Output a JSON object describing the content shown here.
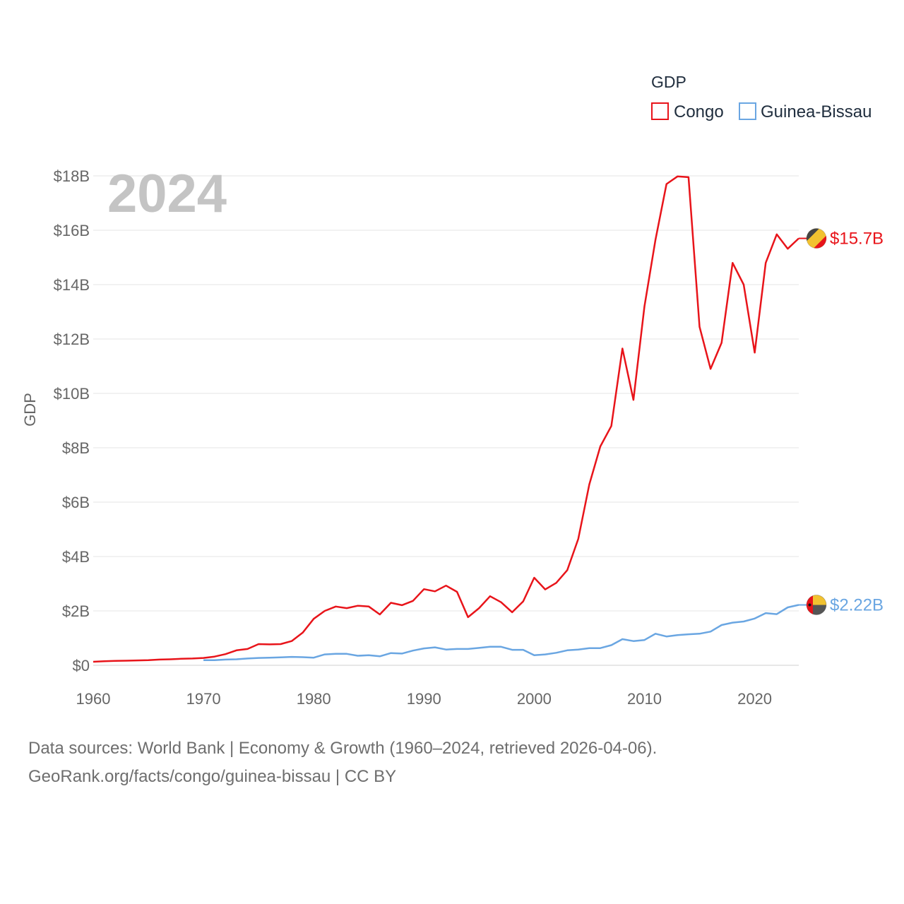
{
  "chart_data": {
    "type": "line",
    "legend_title": "GDP",
    "watermark_year": "2024",
    "ylabel": "GDP",
    "xlim": [
      1960,
      2024
    ],
    "ylim": [
      0,
      18
    ],
    "y_ticks": [
      0,
      2,
      4,
      6,
      8,
      10,
      12,
      14,
      16,
      18
    ],
    "y_tick_labels": [
      "$0",
      "$2B",
      "$4B",
      "$6B",
      "$8B",
      "$10B",
      "$12B",
      "$14B",
      "$16B",
      "$18B"
    ],
    "x_ticks": [
      1960,
      1970,
      1980,
      1990,
      2000,
      2010,
      2020
    ],
    "x_tick_labels": [
      "1960",
      "1970",
      "1980",
      "1990",
      "2000",
      "2010",
      "2020"
    ],
    "grid": true,
    "legend_position": "top-right",
    "series": [
      {
        "name": "Congo",
        "color": "#e8141a",
        "end_label": "$15.7B",
        "flag_colors": [
          "#444444",
          "#f2c230",
          "#e8141a"
        ],
        "x": [
          1960,
          1961,
          1962,
          1963,
          1964,
          1965,
          1966,
          1967,
          1968,
          1969,
          1970,
          1971,
          1972,
          1973,
          1974,
          1975,
          1976,
          1977,
          1978,
          1979,
          1980,
          1981,
          1982,
          1983,
          1984,
          1985,
          1986,
          1987,
          1988,
          1989,
          1990,
          1991,
          1992,
          1993,
          1994,
          1995,
          1996,
          1997,
          1998,
          1999,
          2000,
          2001,
          2002,
          2003,
          2004,
          2005,
          2006,
          2007,
          2008,
          2009,
          2010,
          2011,
          2012,
          2013,
          2014,
          2015,
          2016,
          2017,
          2018,
          2019,
          2020,
          2021,
          2022,
          2023,
          2024
        ],
        "values": [
          0.13,
          0.15,
          0.16,
          0.17,
          0.18,
          0.19,
          0.21,
          0.22,
          0.24,
          0.25,
          0.27,
          0.32,
          0.41,
          0.55,
          0.6,
          0.78,
          0.77,
          0.78,
          0.89,
          1.2,
          1.71,
          2.0,
          2.16,
          2.1,
          2.19,
          2.16,
          1.87,
          2.3,
          2.21,
          2.37,
          2.8,
          2.72,
          2.93,
          2.7,
          1.77,
          2.1,
          2.54,
          2.32,
          1.95,
          2.35,
          3.22,
          2.79,
          3.03,
          3.5,
          4.65,
          6.65,
          8.05,
          8.8,
          11.65,
          9.76,
          13.2,
          15.65,
          17.7,
          17.98,
          17.95,
          12.45,
          10.9,
          11.86,
          14.8,
          14.0,
          11.5,
          14.8,
          15.85,
          15.32,
          15.7
        ]
      },
      {
        "name": "Guinea-Bissau",
        "color": "#6aa6e2",
        "end_label": "$2.22B",
        "flag_colors": [
          "#e8141a",
          "#f2c230",
          "#555555"
        ],
        "x": [
          1970,
          1971,
          1972,
          1973,
          1974,
          1975,
          1976,
          1977,
          1978,
          1979,
          1980,
          1981,
          1982,
          1983,
          1984,
          1985,
          1986,
          1987,
          1988,
          1989,
          1990,
          1991,
          1992,
          1993,
          1994,
          1995,
          1996,
          1997,
          1998,
          1999,
          2000,
          2001,
          2002,
          2003,
          2004,
          2005,
          2006,
          2007,
          2008,
          2009,
          2010,
          2011,
          2012,
          2013,
          2014,
          2015,
          2016,
          2017,
          2018,
          2019,
          2020,
          2021,
          2022,
          2023,
          2024
        ],
        "values": [
          0.19,
          0.19,
          0.21,
          0.22,
          0.25,
          0.27,
          0.28,
          0.29,
          0.31,
          0.3,
          0.28,
          0.4,
          0.42,
          0.42,
          0.35,
          0.37,
          0.33,
          0.45,
          0.43,
          0.54,
          0.62,
          0.66,
          0.58,
          0.6,
          0.6,
          0.64,
          0.68,
          0.68,
          0.57,
          0.57,
          0.37,
          0.4,
          0.46,
          0.55,
          0.58,
          0.63,
          0.63,
          0.74,
          0.96,
          0.89,
          0.93,
          1.16,
          1.06,
          1.11,
          1.14,
          1.16,
          1.24,
          1.48,
          1.57,
          1.61,
          1.72,
          1.92,
          1.88,
          2.13,
          2.22
        ]
      }
    ]
  },
  "footer": {
    "line1": "Data sources: World Bank | Economy & Growth (1960–2024, retrieved 2026-04-06).",
    "line2": "GeoRank.org/facts/congo/guinea-bissau | CC BY"
  }
}
